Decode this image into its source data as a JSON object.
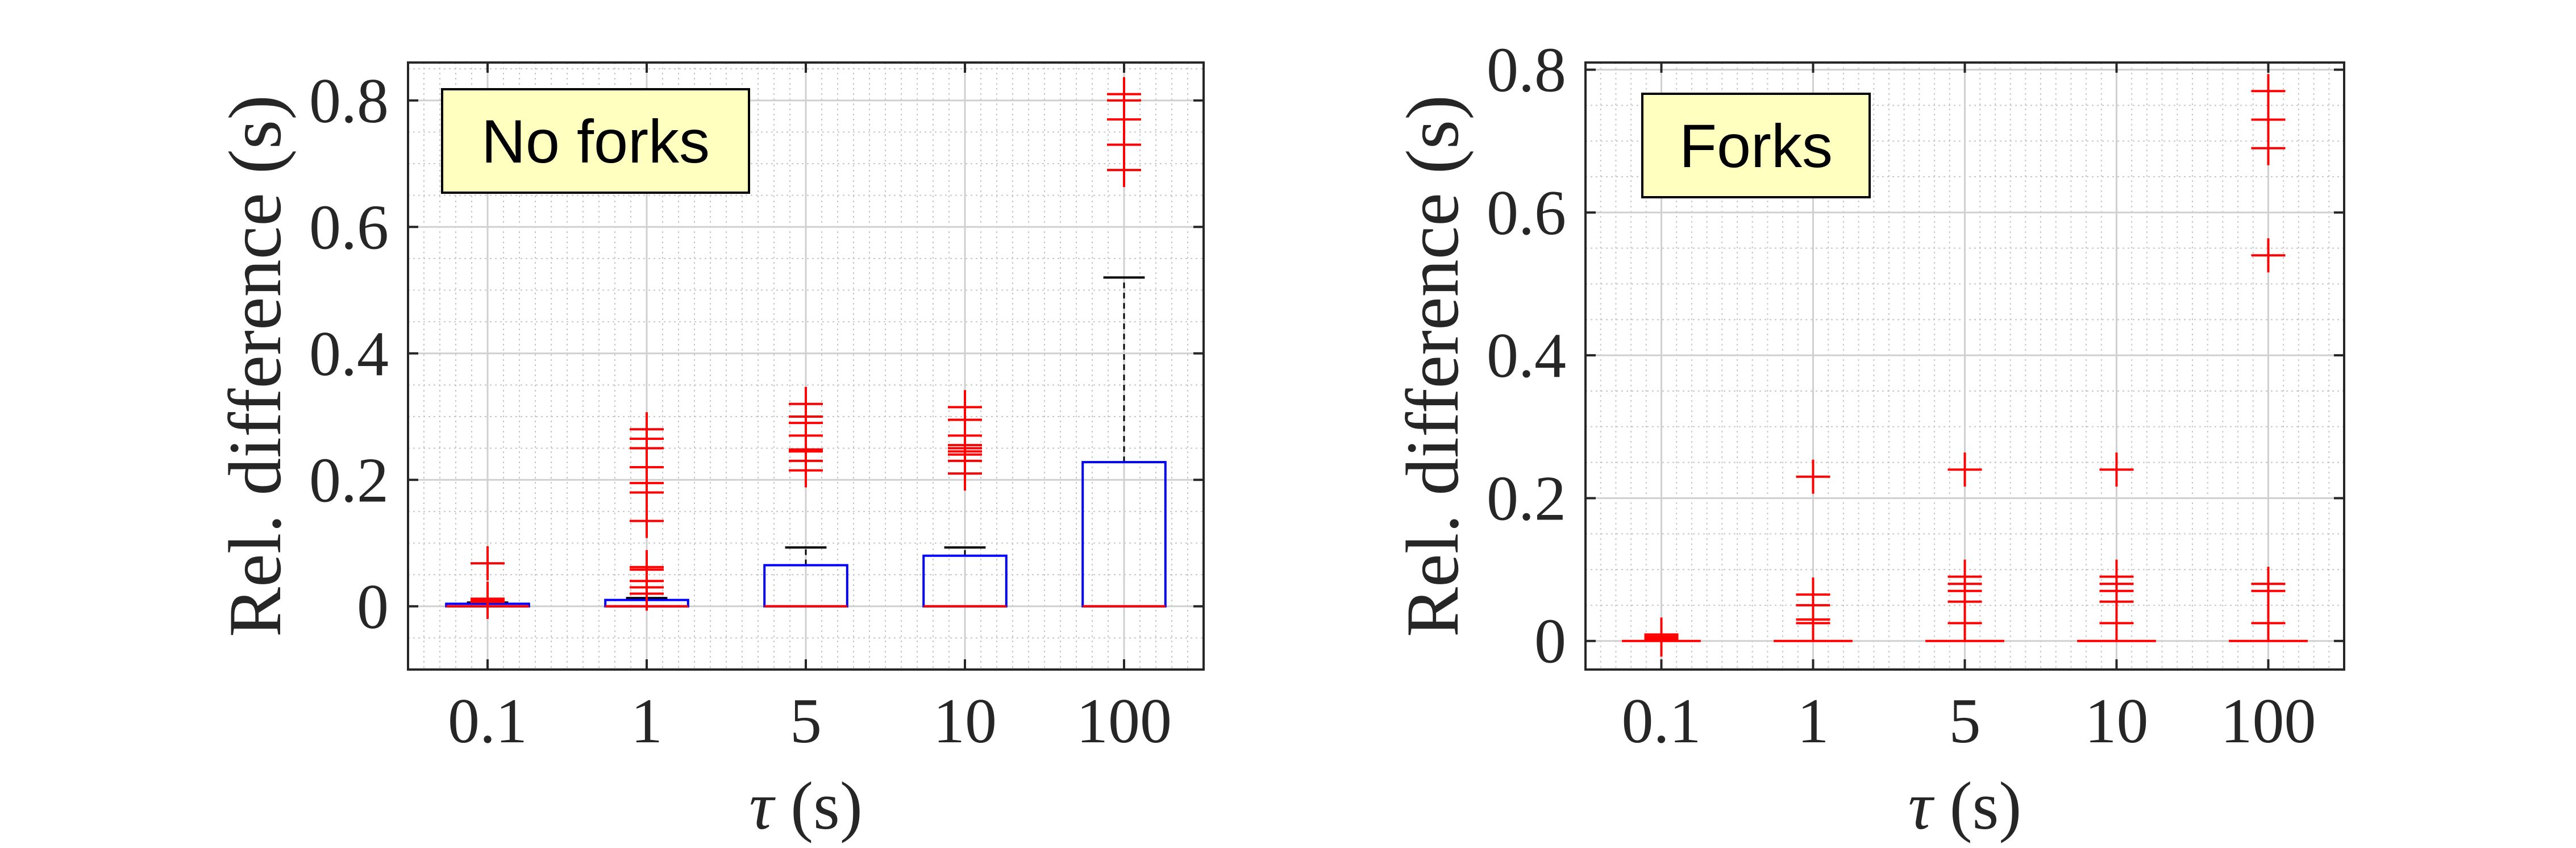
{
  "chart_data": [
    {
      "type": "boxplot",
      "annotation": "No forks",
      "xlabel": "τ (s)",
      "ylabel": "Rel. difference (s)",
      "categories": [
        "0.1",
        "1",
        "5",
        "10",
        "100"
      ],
      "ylim": [
        -0.1,
        0.86
      ],
      "yticks": [
        0,
        0.2,
        0.4,
        0.6,
        0.8
      ],
      "grid": true,
      "minor_grid": true,
      "colors": {
        "box": "#0000ff",
        "median": "#ff0000",
        "whisker": "#000000",
        "outlier": "#ff0000",
        "annotation_bg": "#ffffc0"
      },
      "boxes": [
        {
          "category": "0.1",
          "q1": 0.0,
          "median": 0.0,
          "q3": 0.004,
          "whisker_low": 0.0,
          "whisker_high": 0.006,
          "outliers": [
            0.007,
            0.009,
            0.012,
            0.068
          ]
        },
        {
          "category": "1",
          "q1": 0.0,
          "median": 0.0,
          "q3": 0.01,
          "whisker_low": 0.0,
          "whisker_high": 0.013,
          "outliers": [
            0.02,
            0.03,
            0.04,
            0.058,
            0.062,
            0.135,
            0.18,
            0.195,
            0.22,
            0.25,
            0.265,
            0.28
          ]
        },
        {
          "category": "5",
          "q1": 0.0,
          "median": 0.0,
          "q3": 0.065,
          "whisker_low": 0.0,
          "whisker_high": 0.093,
          "outliers": [
            0.215,
            0.23,
            0.245,
            0.248,
            0.27,
            0.29,
            0.3,
            0.32
          ]
        },
        {
          "category": "10",
          "q1": 0.0,
          "median": 0.0,
          "q3": 0.08,
          "whisker_low": 0.0,
          "whisker_high": 0.093,
          "outliers": [
            0.21,
            0.23,
            0.24,
            0.245,
            0.25,
            0.255,
            0.27,
            0.295,
            0.315
          ]
        },
        {
          "category": "100",
          "q1": 0.0,
          "median": 0.0,
          "q3": 0.228,
          "whisker_low": 0.0,
          "whisker_high": 0.52,
          "outliers": [
            0.69,
            0.73,
            0.77,
            0.8,
            0.81
          ]
        }
      ]
    },
    {
      "type": "boxplot",
      "annotation": "Forks",
      "xlabel": "τ (s)",
      "ylabel": "Rel. difference (s)",
      "categories": [
        "0.1",
        "1",
        "5",
        "10",
        "100"
      ],
      "ylim": [
        -0.04,
        0.81
      ],
      "yticks": [
        0,
        0.2,
        0.4,
        0.6,
        0.8
      ],
      "grid": true,
      "minor_grid": true,
      "colors": {
        "box": "#0000ff",
        "median": "#ff0000",
        "whisker": "#000000",
        "outlier": "#ff0000",
        "annotation_bg": "#ffffc0"
      },
      "boxes": [
        {
          "category": "0.1",
          "q1": 0.0,
          "median": 0.0,
          "q3": 0.0,
          "whisker_low": 0.0,
          "whisker_high": 0.0,
          "outliers": [
            0.002,
            0.004,
            0.006,
            0.009
          ]
        },
        {
          "category": "1",
          "q1": 0.0,
          "median": 0.0,
          "q3": 0.0,
          "whisker_low": 0.0,
          "whisker_high": 0.0,
          "outliers": [
            0.025,
            0.03,
            0.05,
            0.065,
            0.23
          ]
        },
        {
          "category": "5",
          "q1": 0.0,
          "median": 0.0,
          "q3": 0.0,
          "whisker_low": 0.0,
          "whisker_high": 0.0,
          "outliers": [
            0.025,
            0.055,
            0.07,
            0.08,
            0.09,
            0.24
          ]
        },
        {
          "category": "10",
          "q1": 0.0,
          "median": 0.0,
          "q3": 0.0,
          "whisker_low": 0.0,
          "whisker_high": 0.0,
          "outliers": [
            0.025,
            0.055,
            0.07,
            0.08,
            0.09,
            0.24
          ]
        },
        {
          "category": "100",
          "q1": 0.0,
          "median": 0.0,
          "q3": 0.0,
          "whisker_low": 0.0,
          "whisker_high": 0.0,
          "outliers": [
            0.025,
            0.07,
            0.08,
            0.54,
            0.69,
            0.73,
            0.77
          ]
        }
      ]
    }
  ]
}
